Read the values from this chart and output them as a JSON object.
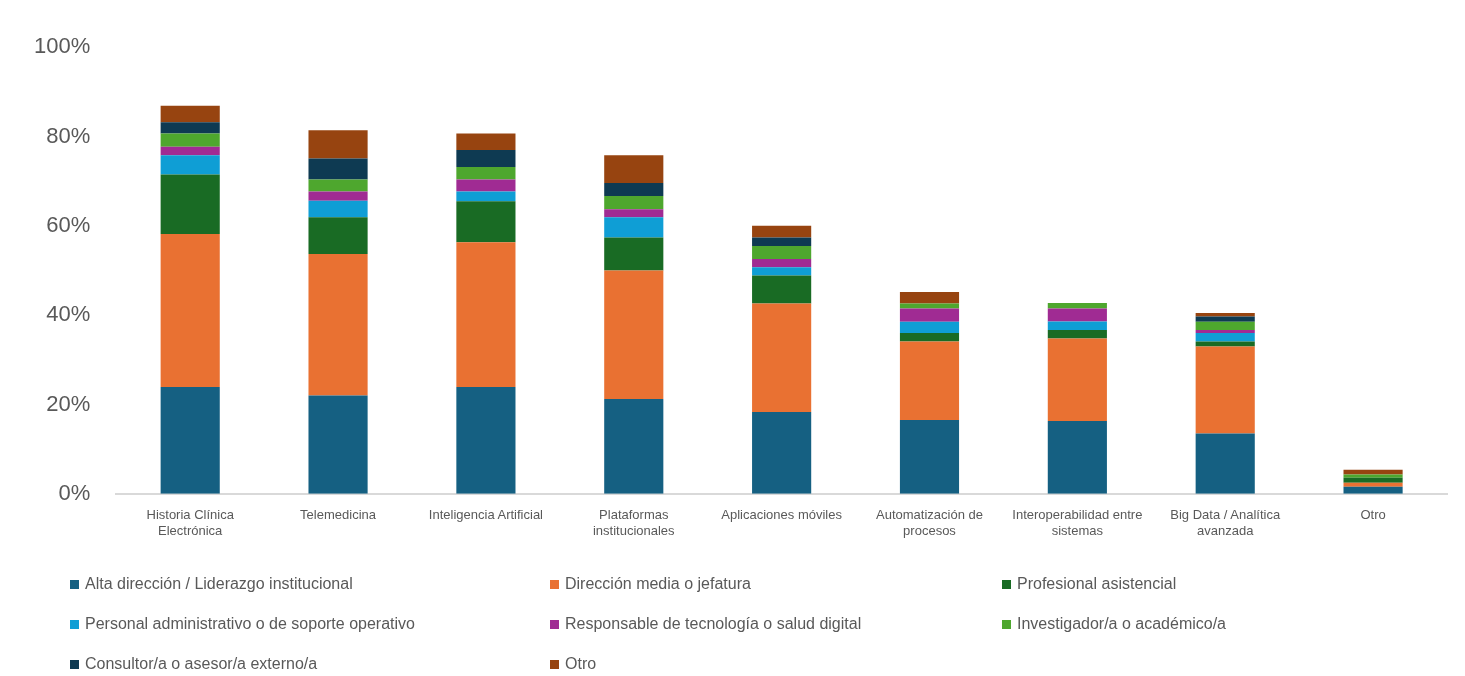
{
  "chart_data": {
    "type": "bar",
    "stacked": true,
    "grid": false,
    "legend": "bottom",
    "categories": [
      "Historia Clínica Electrónica",
      "Telemedicina",
      "Inteligencia Artificial",
      "Plataformas institucionales",
      "Aplicaciones móviles",
      "Automatización de procesos",
      "Interoperabilidad entre sistemas",
      "Big Data / Analítica avanzada",
      "Otro"
    ],
    "ylim": [
      0,
      100
    ],
    "yticks": [
      {
        "value": 0,
        "label": "0%"
      },
      {
        "value": 20,
        "label": "20%"
      },
      {
        "value": 40,
        "label": "40%"
      },
      {
        "value": 60,
        "label": "60%"
      },
      {
        "value": 80,
        "label": "80%"
      },
      {
        "value": 100,
        "label": "100%"
      }
    ],
    "series": [
      {
        "name": "Alta dirección / Liderazgo institucional",
        "color": "#156082",
        "values": [
          23.9,
          22.0,
          23.9,
          21.2,
          18.3,
          16.5,
          16.3,
          13.5,
          1.6
        ]
      },
      {
        "name": "Dirección media o jefatura",
        "color": "#e97132",
        "values": [
          34.3,
          31.7,
          32.4,
          28.8,
          24.3,
          17.6,
          18.5,
          19.5,
          0.9
        ]
      },
      {
        "name": "Profesional asistencial",
        "color": "#196b24",
        "values": [
          13.3,
          8.2,
          9.2,
          7.4,
          6.3,
          1.9,
          1.9,
          1.1,
          1.1
        ]
      },
      {
        "name": "Personal administrativo o de soporte operativo",
        "color": "#0f9ed5",
        "values": [
          4.3,
          3.7,
          2.2,
          4.5,
          1.8,
          2.5,
          1.9,
          1.9,
          0
        ]
      },
      {
        "name": "Responsable de tecnología o salud digital",
        "color": "#a02b93",
        "values": [
          1.9,
          2.1,
          2.7,
          1.8,
          1.9,
          3.0,
          2.9,
          0.7,
          0
        ]
      },
      {
        "name": "Investigador/a o académico/a",
        "color": "#4ea72e",
        "values": [
          3.0,
          2.7,
          2.8,
          3.0,
          2.9,
          1.1,
          1.2,
          1.8,
          0.7
        ]
      },
      {
        "name": "Consultor/a o asesor/a externo/a",
        "color": "#0e3a52",
        "values": [
          2.5,
          4.7,
          3.8,
          2.9,
          1.9,
          0,
          0,
          1.2,
          0
        ]
      },
      {
        "name": "Otro",
        "color": "#974410",
        "values": [
          3.7,
          6.3,
          3.7,
          6.2,
          2.6,
          2.6,
          0,
          0.8,
          1.1
        ]
      }
    ]
  }
}
